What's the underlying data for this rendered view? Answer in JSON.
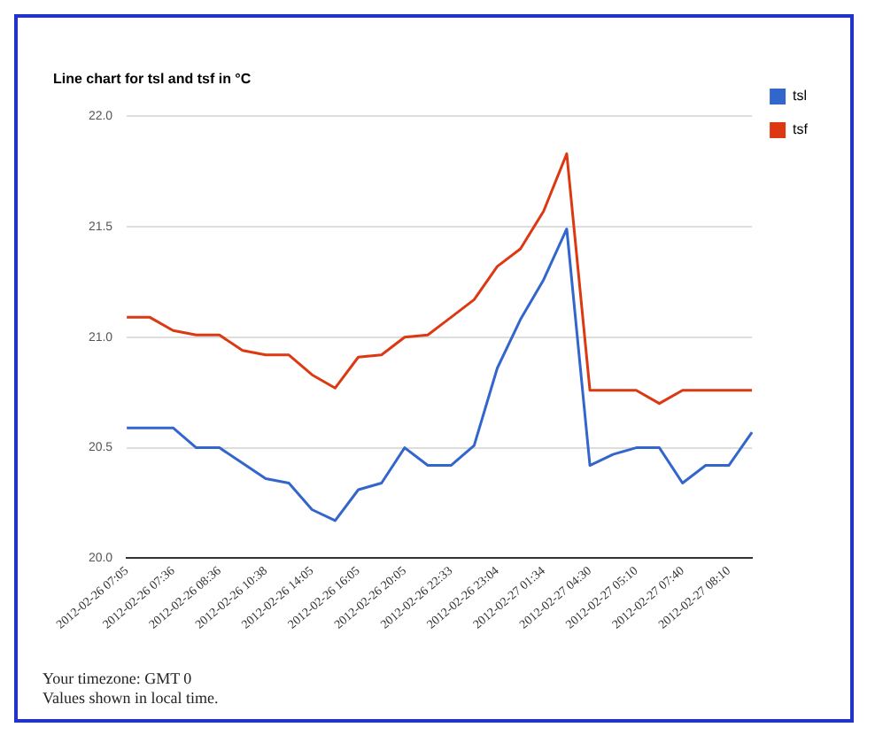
{
  "chart_data": {
    "type": "line",
    "title": "Line chart for tsl and tsf in °C",
    "categories": [
      "2012-02-26 07:05",
      null,
      "2012-02-26 07:36",
      null,
      "2012-02-26 08:36",
      null,
      "2012-02-26 10:38",
      null,
      "2012-02-26 14:05",
      null,
      "2012-02-26 16:05",
      null,
      "2012-02-26 20:05",
      null,
      "2012-02-26 22:33",
      null,
      "2012-02-26 23:04",
      null,
      "2012-02-27 01:34",
      null,
      "2012-02-27 04:30",
      null,
      "2012-02-27 05:10",
      null,
      "2012-02-27 07:40",
      null,
      "2012-02-27 08:10",
      null
    ],
    "series": [
      {
        "name": "tsl",
        "color": "#3366cc",
        "values": [
          20.59,
          20.59,
          20.59,
          20.5,
          20.5,
          20.43,
          20.36,
          20.34,
          20.22,
          20.17,
          20.31,
          20.34,
          20.5,
          20.42,
          20.42,
          20.51,
          20.86,
          21.08,
          21.26,
          21.49,
          20.42,
          20.47,
          20.5,
          20.5,
          20.34,
          20.42,
          20.42,
          20.57
        ]
      },
      {
        "name": "tsf",
        "color": "#dc3912",
        "values": [
          21.09,
          21.09,
          21.03,
          21.01,
          21.01,
          20.94,
          20.92,
          20.92,
          20.83,
          20.77,
          20.91,
          20.92,
          21.0,
          21.01,
          21.09,
          21.17,
          21.32,
          21.4,
          21.57,
          21.83,
          20.76,
          20.76,
          20.76,
          20.7,
          20.76,
          20.76,
          20.76,
          20.76
        ]
      }
    ],
    "ylim": [
      20.0,
      22.0
    ],
    "yticks": [
      {
        "value": 20.0,
        "label": "20.0"
      },
      {
        "value": 20.5,
        "label": "20.5"
      },
      {
        "value": 21.0,
        "label": "21.0"
      },
      {
        "value": 21.5,
        "label": "21.5"
      },
      {
        "value": 22.0,
        "label": "22.0"
      }
    ],
    "grid": "y",
    "legend": "right",
    "marker": "none",
    "annotations": [
      "Your timezone: GMT 0",
      "Values shown in local time."
    ]
  }
}
